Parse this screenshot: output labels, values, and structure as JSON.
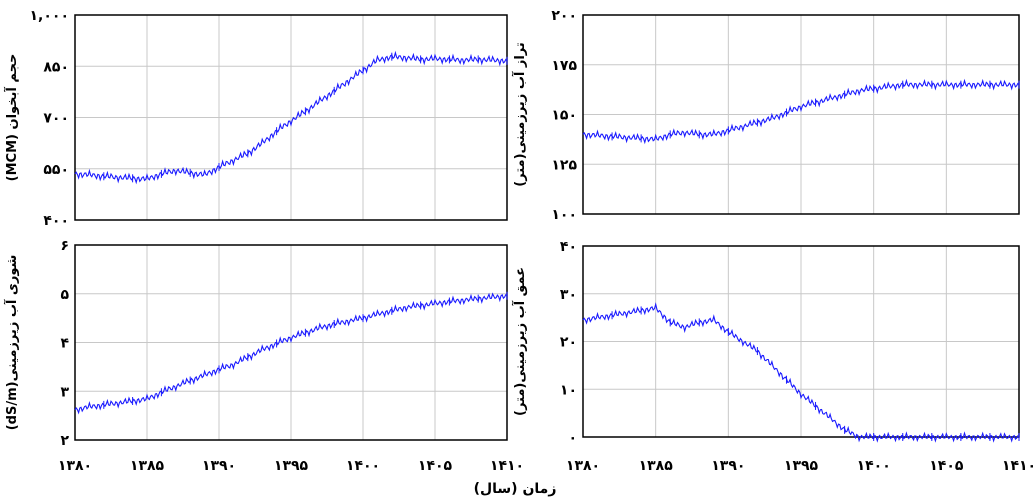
{
  "figure": {
    "xlabel": "زمان (سال)",
    "xtick_labels": [
      "۱۳۸۰",
      "۱۳۸۵",
      "۱۳۹۰",
      "۱۳۹۵",
      "۱۴۰۰",
      "۱۴۰۵",
      "۱۴۱۰"
    ]
  },
  "chart_data": [
    {
      "type": "line",
      "ylabel": "حجم آبخوان (MCM)",
      "ylim": [
        400,
        1000
      ],
      "xlim": [
        1380,
        1410
      ],
      "ytick_values": [
        400,
        550,
        700,
        850,
        1000
      ],
      "ytick_labels": [
        "۴۰۰",
        "۵۵۰",
        "۷۰۰",
        "۸۵۰",
        "۱,۰۰۰"
      ],
      "grid": true,
      "color": "#1a1aff",
      "x": [
        1380,
        1381,
        1382,
        1383,
        1384,
        1385,
        1386,
        1387,
        1388,
        1389,
        1390,
        1391,
        1392,
        1393,
        1394,
        1395,
        1396,
        1397,
        1398,
        1399,
        1400,
        1401,
        1402,
        1403,
        1404,
        1405,
        1406,
        1407,
        1408,
        1409,
        1410
      ],
      "values": [
        535,
        532,
        528,
        525,
        522,
        520,
        535,
        545,
        538,
        532,
        555,
        575,
        595,
        625,
        660,
        690,
        718,
        748,
        778,
        808,
        838,
        868,
        878,
        875,
        870,
        872,
        870,
        868,
        870,
        868,
        866
      ]
    },
    {
      "type": "line",
      "ylabel": "تراز آب زیرزمینی(متر)",
      "ylim": [
        100,
        200
      ],
      "xlim": [
        1380,
        1410
      ],
      "ytick_values": [
        100,
        125,
        150,
        175,
        200
      ],
      "ytick_labels": [
        "۱۰۰",
        "۱۲۵",
        "۱۵۰",
        "۱۷۵",
        "۲۰۰"
      ],
      "grid": true,
      "color": "#1a1aff",
      "x": [
        1380,
        1381,
        1382,
        1383,
        1384,
        1385,
        1386,
        1387,
        1388,
        1389,
        1390,
        1391,
        1392,
        1393,
        1394,
        1395,
        1396,
        1397,
        1398,
        1399,
        1400,
        1401,
        1402,
        1403,
        1404,
        1405,
        1406,
        1407,
        1408,
        1409,
        1410
      ],
      "values": [
        140,
        139.5,
        139,
        138.5,
        138,
        137.5,
        140,
        141,
        140,
        140,
        142,
        144,
        146,
        148,
        151,
        154,
        156,
        158,
        160,
        162,
        163,
        164,
        165,
        165,
        165,
        165,
        165,
        165,
        165,
        165,
        165
      ]
    },
    {
      "type": "line",
      "ylabel": "شوری آب زیرزمینی(dS/m)",
      "ylim": [
        2,
        6
      ],
      "xlim": [
        1380,
        1410
      ],
      "ytick_values": [
        2,
        3,
        4,
        5,
        6
      ],
      "ytick_labels": [
        "۲",
        "۳",
        "۴",
        "۵",
        "۶"
      ],
      "grid": true,
      "color": "#1a1aff",
      "x": [
        1380,
        1381,
        1382,
        1383,
        1384,
        1385,
        1386,
        1387,
        1388,
        1389,
        1390,
        1391,
        1392,
        1393,
        1394,
        1395,
        1396,
        1397,
        1398,
        1399,
        1400,
        1401,
        1402,
        1403,
        1404,
        1405,
        1406,
        1407,
        1408,
        1409,
        1410
      ],
      "values": [
        2.62,
        2.68,
        2.72,
        2.76,
        2.8,
        2.84,
        2.98,
        3.1,
        3.22,
        3.33,
        3.45,
        3.55,
        3.7,
        3.85,
        3.98,
        4.1,
        4.2,
        4.3,
        4.38,
        4.44,
        4.5,
        4.58,
        4.65,
        4.72,
        4.76,
        4.8,
        4.84,
        4.87,
        4.9,
        4.93,
        4.96
      ]
    },
    {
      "type": "line",
      "ylabel": "عمق آب زیرزمینی(متر)",
      "ylim": [
        0,
        40
      ],
      "xlim": [
        1380,
        1410
      ],
      "ytick_values": [
        0,
        10,
        20,
        30,
        40
      ],
      "ytick_labels": [
        "۰",
        "۱۰",
        "۲۰",
        "۳۰",
        "۴۰"
      ],
      "grid": true,
      "color": "#1a1aff",
      "x": [
        1380,
        1381,
        1382,
        1383,
        1384,
        1385,
        1386,
        1387,
        1388,
        1389,
        1390,
        1391,
        1392,
        1393,
        1394,
        1395,
        1396,
        1397,
        1398,
        1399,
        1400,
        1401,
        1402,
        1403,
        1404,
        1405,
        1406,
        1407,
        1408,
        1409,
        1410
      ],
      "values": [
        24.5,
        25,
        25.5,
        26,
        26.5,
        27,
        24,
        23,
        24,
        24.5,
        22,
        20,
        18,
        15,
        12,
        9,
        6.5,
        4,
        1.5,
        0,
        0,
        0,
        0,
        0,
        0,
        0,
        0,
        0,
        0,
        0,
        0
      ]
    }
  ]
}
